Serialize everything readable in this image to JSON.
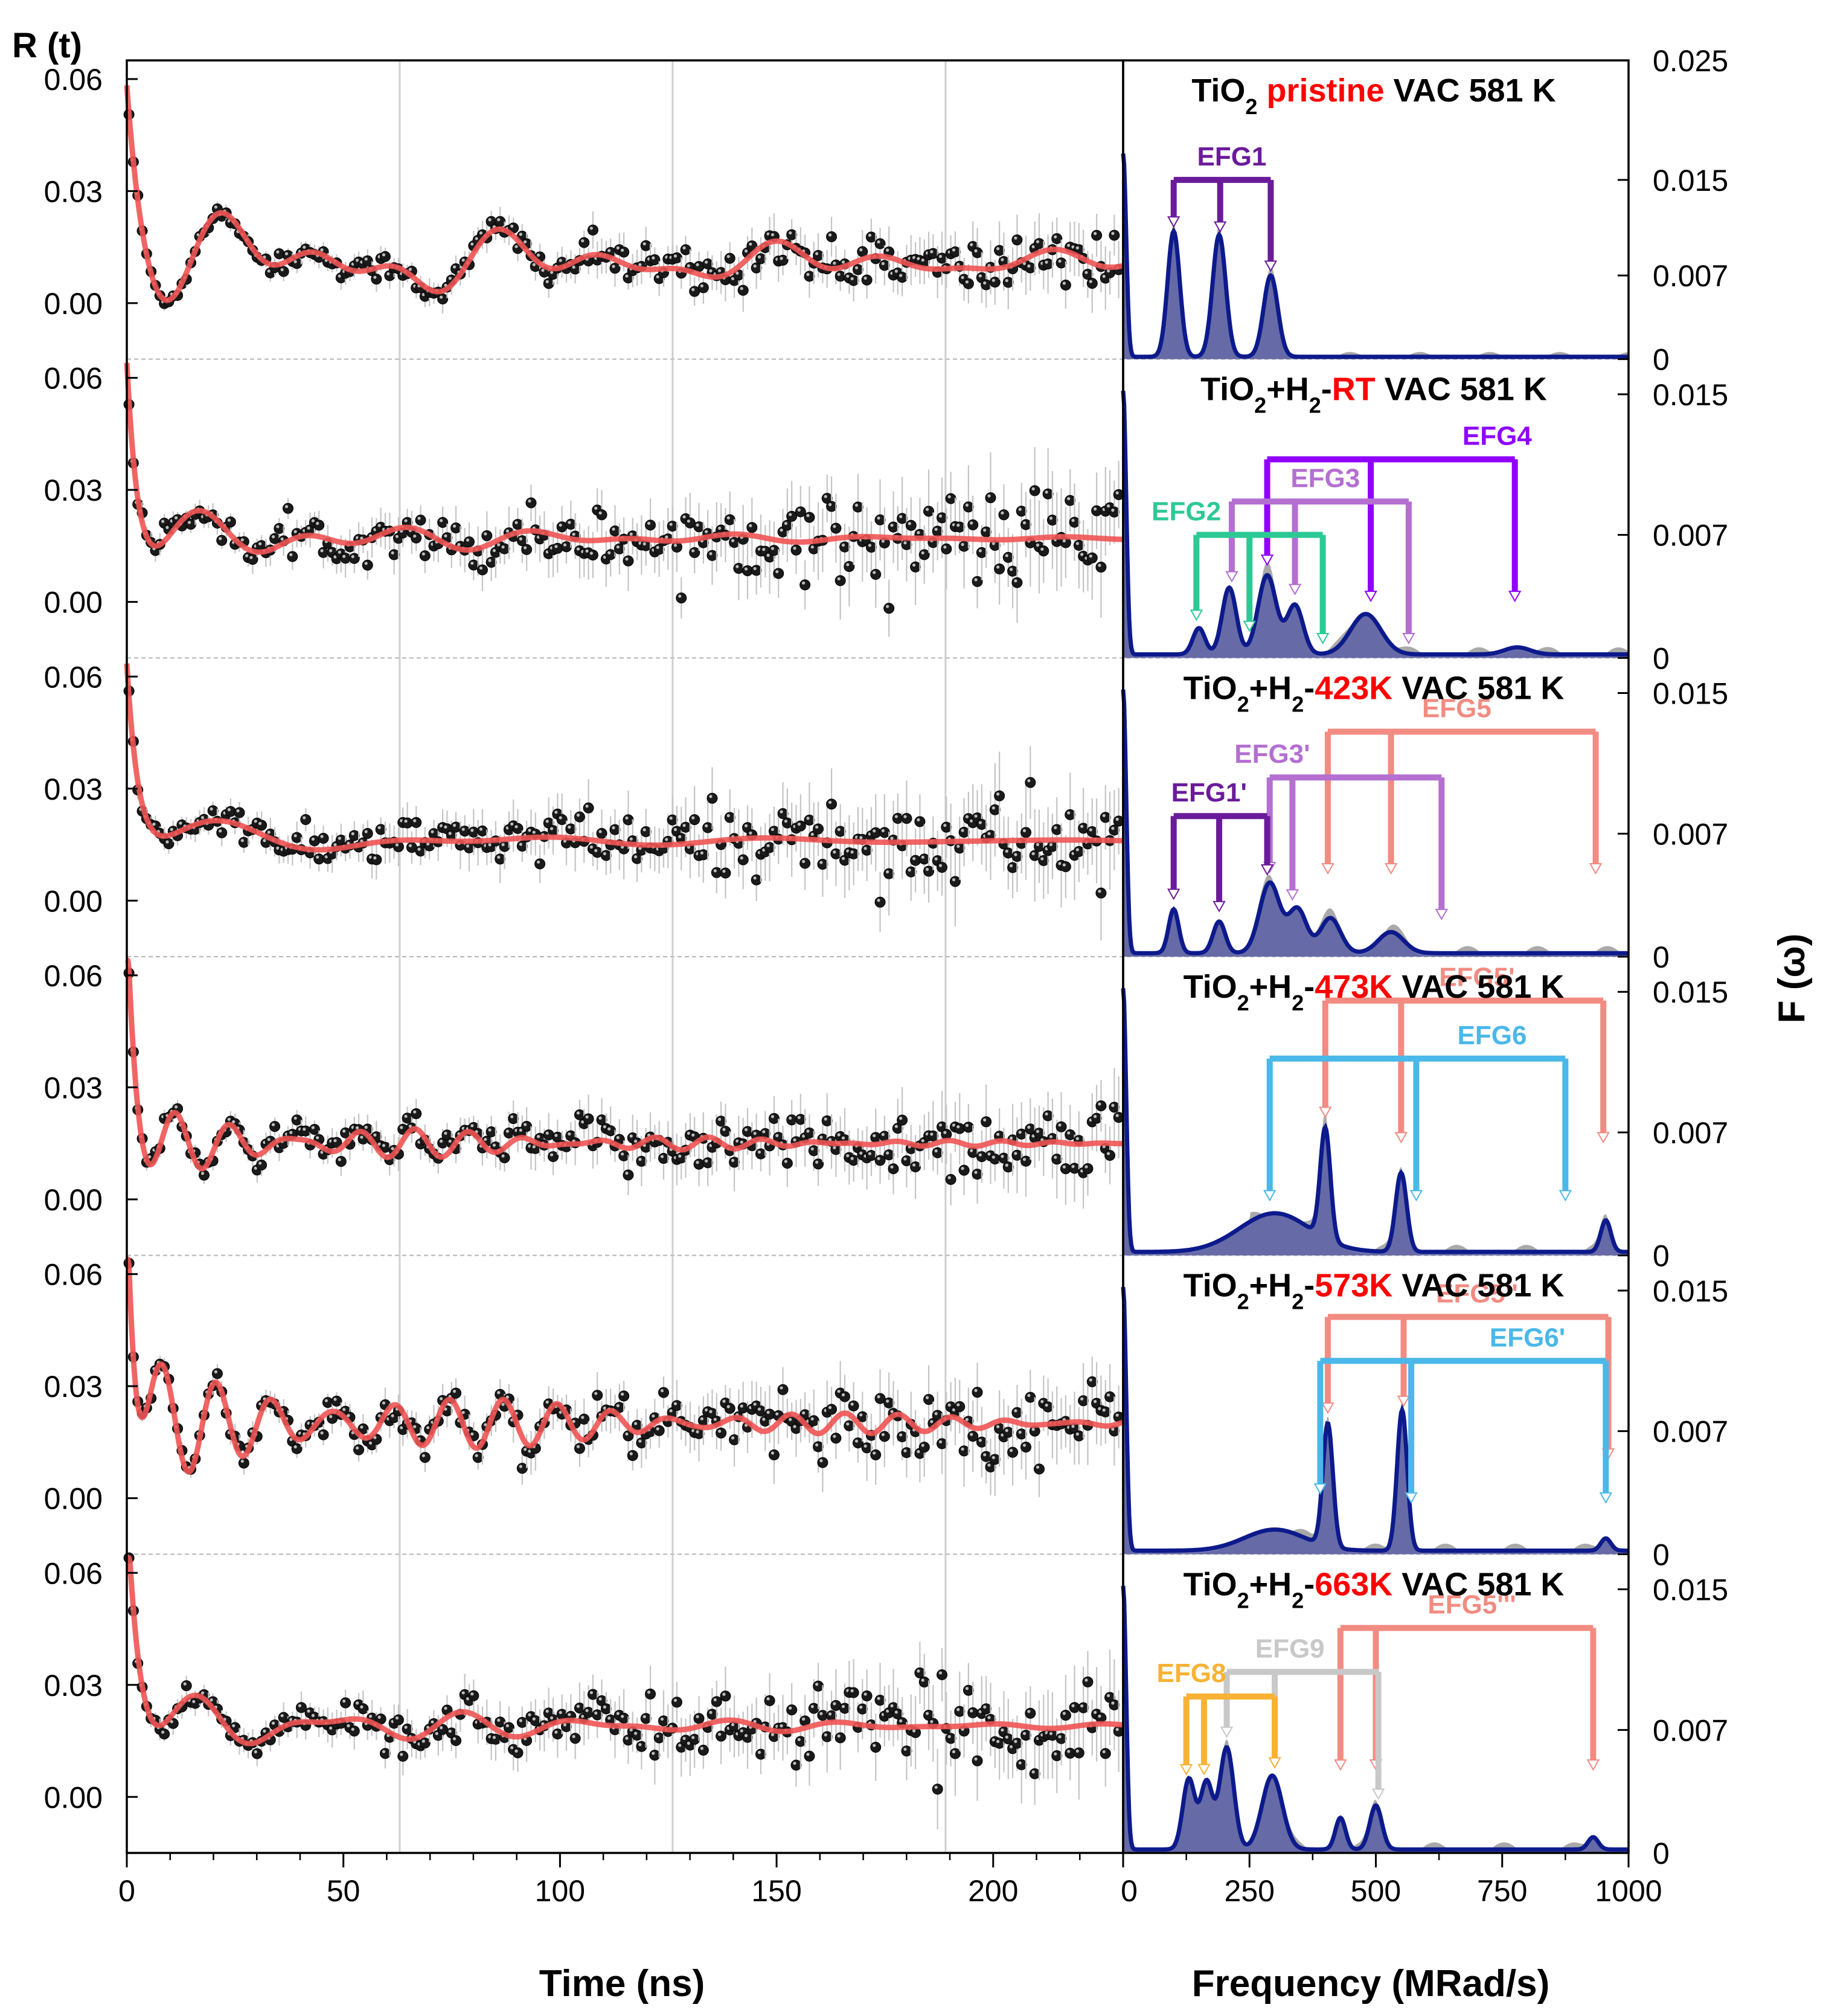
{
  "chart_data": {
    "type": "line",
    "title": "",
    "left_axis": {
      "ylabel": "R (t)",
      "xlabel": "Time (ns)",
      "xlim": [
        0,
        230
      ],
      "xticks": [
        0,
        50,
        100,
        150,
        200
      ],
      "tick_labels_x": [
        "0",
        "50",
        "100",
        "150",
        "200"
      ],
      "ylim": [
        -0.015,
        0.065
      ],
      "yticks": [
        0.0,
        0.03,
        0.06
      ],
      "tick_labels_y": [
        "0.00",
        "0.03",
        "0.06"
      ],
      "vertical_gridlines": [
        63,
        126,
        189
      ]
    },
    "right_axis": {
      "ylabel": "F (ω)",
      "xlabel": "Frequency (MRad/s)",
      "xlim": [
        0,
        1000
      ],
      "xticks": [
        0,
        250,
        500,
        750,
        1000
      ],
      "tick_labels_x": [
        "0",
        "250",
        "500",
        "750",
        "1000"
      ]
    },
    "panels": [
      {
        "label_parts": [
          {
            "text": "TiO",
            "color": "#000000"
          },
          {
            "text": "2",
            "sub": true,
            "color": "#000000"
          },
          {
            "text": " pristine",
            "color": "#ff0000"
          },
          {
            "text": " VAC 581 K",
            "color": "#000000"
          }
        ],
        "fymax": 0.025,
        "f_ticks": [
          0,
          0.007,
          0.015,
          0.025
        ],
        "f_tick_labels": [
          "0",
          "0.007",
          "0.015",
          "0.025"
        ],
        "fit_model": {
          "amp": 0.05,
          "decay": 3.5,
          "base": 0.011,
          "osc": [
            {
              "a": 0.007,
              "w": 0.1,
              "t0": 15,
              "tau": 130
            },
            {
              "a": 0.006,
              "w": 0.2,
              "t0": 15,
              "tau": 150
            },
            {
              "a": 0.0055,
              "w": 0.29,
              "t0": 15,
              "tau": 130
            }
          ]
        },
        "noise": 0.005,
        "spectrum_peaks": [
          {
            "freq": 100,
            "height": 0.0105,
            "width": 12
          },
          {
            "freq": 190,
            "height": 0.0102,
            "width": 13
          },
          {
            "freq": 292,
            "height": 0.0068,
            "width": 14
          },
          {
            "freq": 0,
            "height": 0.017,
            "width": 6
          }
        ],
        "efg_groups": [
          {
            "name": "EFG1",
            "color": "#6a1b9a",
            "level": 0.015,
            "freqs": [
              100,
              192,
              292
            ],
            "label_freq": 215
          }
        ]
      },
      {
        "label_parts": [
          {
            "text": "TiO",
            "color": "#000000"
          },
          {
            "text": "2",
            "sub": true,
            "color": "#000000"
          },
          {
            "text": "+H",
            "color": "#000000"
          },
          {
            "text": "2",
            "sub": true,
            "color": "#000000"
          },
          {
            "text": "-",
            "color": "#000000"
          },
          {
            "text": "RT",
            "color": "#ff0000"
          },
          {
            "text": " VAC 581 K",
            "color": "#000000"
          }
        ],
        "fymax": 0.017,
        "f_ticks": [
          0,
          0.007,
          0.015
        ],
        "f_tick_labels": [
          "0",
          "0.007",
          "0.015"
        ],
        "fit_model": {
          "amp": 0.055,
          "decay": 2.5,
          "base": 0.017,
          "osc": [
            {
              "a": 0.006,
              "w": 0.25,
              "t0": 10,
              "tau": 60
            },
            {
              "a": 0.004,
              "w": 0.16,
              "t0": 10,
              "tau": 80
            }
          ]
        },
        "noise": 0.008,
        "spectrum_peaks": [
          {
            "freq": 150,
            "height": 0.0015,
            "width": 12
          },
          {
            "freq": 210,
            "height": 0.0038,
            "width": 14
          },
          {
            "freq": 285,
            "height": 0.0045,
            "width": 18
          },
          {
            "freq": 340,
            "height": 0.0028,
            "width": 16
          },
          {
            "freq": 480,
            "height": 0.0023,
            "width": 30
          },
          {
            "freq": 780,
            "height": 0.0004,
            "width": 25
          },
          {
            "freq": 0,
            "height": 0.015,
            "width": 6
          }
        ],
        "efg_groups": [
          {
            "name": "EFG4",
            "color": "#8f00ff",
            "level": 0.0113,
            "freqs": [
              285,
              490,
              775
            ],
            "label_freq": 740
          },
          {
            "name": "EFG3",
            "color": "#b46fd1",
            "level": 0.0089,
            "freqs": [
              215,
              340,
              565
            ],
            "label_freq": 400
          },
          {
            "name": "EFG2",
            "color": "#2cc995",
            "level": 0.007,
            "freqs": [
              145,
              250,
              395
            ],
            "label_freq": 125
          }
        ]
      },
      {
        "label_parts": [
          {
            "text": "TiO",
            "color": "#000000"
          },
          {
            "text": "2",
            "sub": true,
            "color": "#000000"
          },
          {
            "text": "+H",
            "color": "#000000"
          },
          {
            "text": "2",
            "sub": true,
            "color": "#000000"
          },
          {
            "text": "-",
            "color": "#000000"
          },
          {
            "text": "423K",
            "color": "#ff0000"
          },
          {
            "text": " VAC 581 K",
            "color": "#000000"
          }
        ],
        "fymax": 0.017,
        "f_ticks": [
          0,
          0.007,
          0.015
        ],
        "f_tick_labels": [
          "0",
          "0.007",
          "0.015"
        ],
        "fit_model": {
          "amp": 0.055,
          "decay": 2.8,
          "base": 0.016,
          "osc": [
            {
              "a": 0.005,
              "w": 0.15,
              "t0": 10,
              "tau": 50
            },
            {
              "a": 0.003,
              "w": 0.1,
              "t0": 10,
              "tau": 90
            }
          ]
        },
        "noise": 0.008,
        "spectrum_peaks": [
          {
            "freq": 100,
            "height": 0.0025,
            "width": 10
          },
          {
            "freq": 190,
            "height": 0.0018,
            "width": 12
          },
          {
            "freq": 290,
            "height": 0.004,
            "width": 20
          },
          {
            "freq": 345,
            "height": 0.0025,
            "width": 18
          },
          {
            "freq": 410,
            "height": 0.002,
            "width": 20
          },
          {
            "freq": 530,
            "height": 0.0012,
            "width": 25
          },
          {
            "freq": 0,
            "height": 0.015,
            "width": 6
          }
        ],
        "efg_groups": [
          {
            "name": "EFG5",
            "color": "#f28b82",
            "level": 0.0128,
            "freqs": [
              405,
              530,
              935
            ],
            "label_freq": 660
          },
          {
            "name": "EFG3'",
            "color": "#b46fd1",
            "level": 0.0102,
            "freqs": [
              290,
              335,
              630
            ],
            "label_freq": 295
          },
          {
            "name": "EFG1'",
            "color": "#6a1b9a",
            "level": 0.008,
            "freqs": [
              100,
              190,
              285
            ],
            "label_freq": 170
          }
        ]
      },
      {
        "label_parts": [
          {
            "text": "TiO",
            "color": "#000000"
          },
          {
            "text": "2",
            "sub": true,
            "color": "#000000"
          },
          {
            "text": "+H",
            "color": "#000000"
          },
          {
            "text": "2",
            "sub": true,
            "color": "#000000"
          },
          {
            "text": "-",
            "color": "#000000"
          },
          {
            "text": "473K",
            "color": "#ff0000"
          },
          {
            "text": " VAC 581 K",
            "color": "#000000"
          }
        ],
        "fymax": 0.017,
        "f_ticks": [
          0,
          0.007,
          0.015
        ],
        "f_tick_labels": [
          "0",
          "0.007",
          "0.015"
        ],
        "fit_model": {
          "amp": 0.055,
          "decay": 1.8,
          "base": 0.015,
          "osc": [
            {
              "a": 0.006,
              "w": 0.46,
              "t0": 8,
              "tau": 70
            },
            {
              "a": 0.0035,
              "w": 0.56,
              "t0": 8,
              "tau": 90
            }
          ]
        },
        "noise": 0.0065,
        "spectrum_peaks": [
          {
            "freq": 400,
            "height": 0.0063,
            "width": 10
          },
          {
            "freq": 550,
            "height": 0.0045,
            "width": 11
          },
          {
            "freq": 300,
            "height": 0.0022,
            "width": 70
          },
          {
            "freq": 955,
            "height": 0.0018,
            "width": 10
          },
          {
            "freq": 0,
            "height": 0.015,
            "width": 6
          }
        ],
        "efg_groups": [
          {
            "name": "EFG5'",
            "color": "#f28b82",
            "level": 0.0145,
            "freqs": [
              400,
              550,
              950
            ],
            "label_freq": 700
          },
          {
            "name": "EFG6",
            "color": "#4ab8e8",
            "level": 0.0112,
            "freqs": [
              290,
              580,
              875
            ],
            "label_freq": 730
          }
        ]
      },
      {
        "label_parts": [
          {
            "text": "TiO",
            "color": "#000000"
          },
          {
            "text": "2",
            "sub": true,
            "color": "#000000"
          },
          {
            "text": "+H",
            "color": "#000000"
          },
          {
            "text": "2",
            "sub": true,
            "color": "#000000"
          },
          {
            "text": "-",
            "color": "#000000"
          },
          {
            "text": "573K",
            "color": "#ff0000"
          },
          {
            "text": " VAC 581 K",
            "color": "#000000"
          }
        ],
        "fymax": 0.017,
        "f_ticks": [
          0,
          0.007,
          0.015
        ],
        "f_tick_labels": [
          "0",
          "0.007",
          "0.015"
        ],
        "fit_model": {
          "amp": 0.07,
          "decay": 2.0,
          "base": 0.02,
          "osc": [
            {
              "a": 0.011,
              "w": 0.48,
              "t0": 5,
              "tau": 90
            },
            {
              "a": 0.005,
              "w": 0.555,
              "t0": 5,
              "tau": 110
            }
          ]
        },
        "noise": 0.0065,
        "spectrum_peaks": [
          {
            "freq": 405,
            "height": 0.007,
            "width": 10
          },
          {
            "freq": 552,
            "height": 0.008,
            "width": 10
          },
          {
            "freq": 300,
            "height": 0.0012,
            "width": 60
          },
          {
            "freq": 955,
            "height": 0.0007,
            "width": 10
          },
          {
            "freq": 0,
            "height": 0.015,
            "width": 6
          }
        ],
        "efg_groups": [
          {
            "name": "EFG5''",
            "color": "#f28b82",
            "level": 0.0135,
            "freqs": [
              405,
              555,
              960
            ],
            "label_freq": 700
          },
          {
            "name": "EFG6'",
            "color": "#4ab8e8",
            "level": 0.011,
            "freqs": [
              390,
              570,
              955
            ],
            "label_freq": 800
          }
        ]
      },
      {
        "label_parts": [
          {
            "text": "TiO",
            "color": "#000000"
          },
          {
            "text": "2",
            "sub": true,
            "color": "#000000"
          },
          {
            "text": "+H",
            "color": "#000000"
          },
          {
            "text": "2",
            "sub": true,
            "color": "#000000"
          },
          {
            "text": "-",
            "color": "#000000"
          },
          {
            "text": "663K",
            "color": "#ff0000"
          },
          {
            "text": " VAC 581 K",
            "color": "#000000"
          }
        ],
        "fymax": 0.017,
        "f_ticks": [
          0,
          0.007,
          0.015
        ],
        "f_tick_labels": [
          "0",
          "0.007",
          "0.015"
        ],
        "fit_model": {
          "amp": 0.065,
          "decay": 3.0,
          "base": 0.019,
          "osc": [
            {
              "a": 0.006,
              "w": 0.21,
              "t0": 10,
              "tau": 80
            },
            {
              "a": 0.004,
              "w": 0.3,
              "t0": 10,
              "tau": 80
            }
          ]
        },
        "noise": 0.0075,
        "spectrum_peaks": [
          {
            "freq": 130,
            "height": 0.004,
            "width": 12
          },
          {
            "freq": 165,
            "height": 0.0038,
            "width": 12
          },
          {
            "freq": 205,
            "height": 0.0058,
            "width": 14
          },
          {
            "freq": 295,
            "height": 0.0042,
            "width": 20
          },
          {
            "freq": 430,
            "height": 0.0018,
            "width": 10
          },
          {
            "freq": 500,
            "height": 0.0025,
            "width": 12
          },
          {
            "freq": 930,
            "height": 0.0007,
            "width": 10
          },
          {
            "freq": 0,
            "height": 0.015,
            "width": 6
          }
        ],
        "efg_groups": [
          {
            "name": "EFG5'''",
            "color": "#f28b82",
            "level": 0.0128,
            "freqs": [
              430,
              500,
              930
            ],
            "label_freq": 690
          },
          {
            "name": "EFG9",
            "color": "#c8c8c8",
            "level": 0.0103,
            "freqs": [
              205,
              300,
              505
            ],
            "label_freq": 330
          },
          {
            "name": "EFG8",
            "color": "#f9b233",
            "level": 0.0089,
            "freqs": [
              125,
              160,
              300
            ],
            "label_freq": 135
          }
        ]
      }
    ]
  }
}
